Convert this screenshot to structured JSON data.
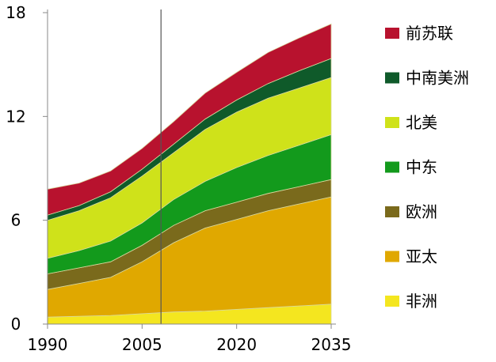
{
  "chart_data": {
    "type": "area",
    "stacked": true,
    "title": "",
    "xlabel": "",
    "ylabel": "",
    "x": [
      1990,
      1995,
      2000,
      2005,
      2010,
      2015,
      2020,
      2025,
      2030,
      2035
    ],
    "xlim": [
      1990,
      2035
    ],
    "ylim": [
      0,
      18
    ],
    "xticks": [
      1990,
      2005,
      2020,
      2035
    ],
    "yticks": [
      0,
      6,
      12,
      18
    ],
    "tick_labels_x": [
      "1990",
      "2005",
      "2020",
      "2035"
    ],
    "tick_labels_y": [
      "0",
      "6",
      "12",
      "18"
    ],
    "grid": false,
    "legend_position": "right",
    "reference_line_x": 2008,
    "series": [
      {
        "name": "非洲",
        "color": "#f4e61f",
        "values": [
          0.4,
          0.45,
          0.5,
          0.6,
          0.7,
          0.75,
          0.85,
          0.95,
          1.05,
          1.15
        ]
      },
      {
        "name": "亚太",
        "color": "#e0a800",
        "values": [
          1.6,
          1.9,
          2.2,
          3.0,
          4.0,
          4.8,
          5.2,
          5.6,
          5.9,
          6.2
        ]
      },
      {
        "name": "欧洲",
        "color": "#7a6a1c",
        "values": [
          0.9,
          0.9,
          0.9,
          0.95,
          1.0,
          1.0,
          1.0,
          1.0,
          1.0,
          1.0
        ]
      },
      {
        "name": "中东",
        "color": "#139a1c",
        "values": [
          0.9,
          1.0,
          1.2,
          1.3,
          1.5,
          1.7,
          2.0,
          2.2,
          2.4,
          2.6
        ]
      },
      {
        "name": "北美",
        "color": "#cfe21a",
        "values": [
          2.2,
          2.3,
          2.5,
          2.7,
          2.7,
          3.0,
          3.2,
          3.3,
          3.3,
          3.3
        ]
      },
      {
        "name": "中南美洲",
        "color": "#0f5a2a",
        "values": [
          0.3,
          0.3,
          0.35,
          0.4,
          0.5,
          0.6,
          0.7,
          0.85,
          1.0,
          1.1
        ]
      },
      {
        "name": "前苏联",
        "color": "#b8122e",
        "values": [
          1.5,
          1.3,
          1.2,
          1.2,
          1.3,
          1.5,
          1.6,
          1.8,
          1.9,
          2.0
        ]
      }
    ]
  }
}
